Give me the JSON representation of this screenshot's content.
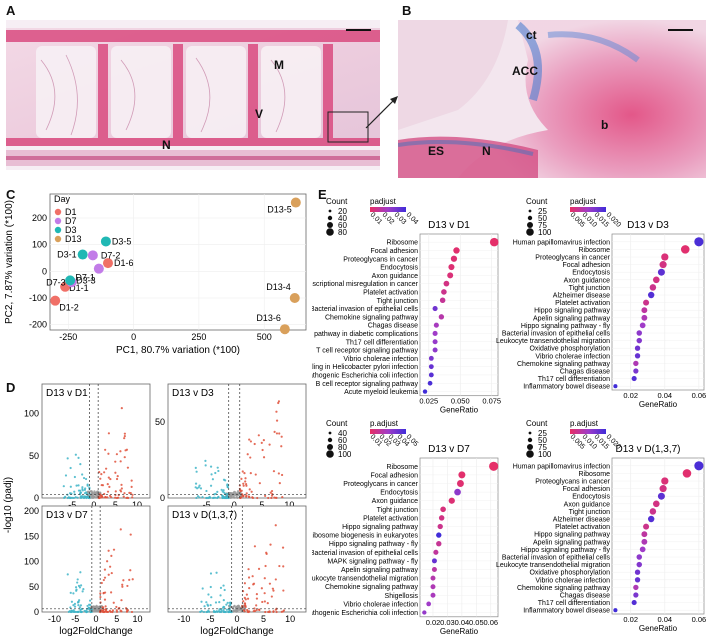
{
  "panels": {
    "a": {
      "letter": "A",
      "labels": {
        "m": "M",
        "v": "V",
        "n": "N"
      }
    },
    "b": {
      "letter": "B",
      "labels": {
        "ct": "ct",
        "acc": "ACC",
        "b": "b",
        "es": "ES",
        "n": "N"
      }
    },
    "c": {
      "letter": "C"
    },
    "d": {
      "letter": "D"
    },
    "e": {
      "letter": "E"
    }
  },
  "colors": {
    "D1": "#f07067",
    "D7": "#c27ce8",
    "D3": "#20b8b4",
    "D13": "#d9a05b",
    "volcano_up": "#e0523c",
    "volcano_down": "#3fb5c8",
    "volcano_ns": "#9a9a9a"
  },
  "chart_data": [
    {
      "type": "scatter",
      "id": "pca",
      "xlabel": "PC1, 80.7% variation (*100)",
      "ylabel": "PC2, 7.87% variation (*100)",
      "xlim": [
        -320,
        660
      ],
      "ylim": [
        -220,
        290
      ],
      "xticks": [
        -250,
        0,
        250,
        500
      ],
      "yticks": [
        -200,
        -100,
        0,
        100,
        200
      ],
      "legend": {
        "title": "Day",
        "entries": [
          "D1",
          "D7",
          "D3",
          "D13"
        ]
      },
      "points": [
        {
          "label": "D1-1",
          "group": "D1",
          "x": -262,
          "y": -58
        },
        {
          "label": "D1-2",
          "group": "D1",
          "x": -300,
          "y": -110
        },
        {
          "label": "D1-6",
          "group": "D1",
          "x": -98,
          "y": 31
        },
        {
          "label": "D7-1",
          "group": "D7",
          "x": -133,
          "y": 10
        },
        {
          "label": "D7-2",
          "group": "D7",
          "x": -156,
          "y": 60
        },
        {
          "label": "D7-3",
          "group": "D7",
          "x": -237,
          "y": -41
        },
        {
          "label": "D3-1",
          "group": "D3",
          "x": -195,
          "y": 63
        },
        {
          "label": "D3-3",
          "group": "D3",
          "x": -243,
          "y": -34
        },
        {
          "label": "D3-5",
          "group": "D3",
          "x": -106,
          "y": 112
        },
        {
          "label": "D13-4",
          "group": "D13",
          "x": 617,
          "y": -100
        },
        {
          "label": "D13-5",
          "group": "D13",
          "x": 621,
          "y": 258
        },
        {
          "label": "D13-6",
          "group": "D13",
          "x": 579,
          "y": -217
        }
      ]
    },
    {
      "type": "scatter",
      "id": "volcano",
      "xlabel": "log2FoldChange",
      "ylabel": "-log10 (padj)",
      "panels": [
        {
          "title": "D13 v D1",
          "xticks": [
            -5,
            0,
            5,
            10
          ],
          "yticks": [
            0,
            50,
            100
          ],
          "ylim": [
            0,
            135
          ]
        },
        {
          "title": "D13 v D3",
          "xticks": [
            -5,
            0,
            5,
            10
          ],
          "yticks": [
            0,
            50
          ],
          "ylim": [
            0,
            75
          ]
        },
        {
          "title": "D13 v D7",
          "xticks": [
            -10,
            -5,
            0,
            5,
            10
          ],
          "yticks": [
            0,
            50,
            100,
            150,
            200
          ],
          "ylim": [
            0,
            210
          ]
        },
        {
          "title": "D13 v D(1,3,7)",
          "xticks": [
            -10,
            -5,
            0,
            5,
            10
          ],
          "yticks": [],
          "ylim": [
            0,
            210
          ]
        }
      ]
    },
    {
      "type": "scatter",
      "id": "go",
      "xlabel": "GeneRatio",
      "panels": [
        {
          "title": "D13 v D1",
          "size_title": "Count",
          "color_title": "padjust",
          "size_levels": [
            "20",
            "40",
            "60",
            "80"
          ],
          "color_ticks": [
            "0.01",
            "0.02",
            "0.03",
            "0.04"
          ],
          "xlim": [
            0.018,
            0.08
          ],
          "xticks": [
            0.025,
            0.05,
            0.075
          ],
          "xticklabels": [
            "0.025",
            "0.050",
            "0.075"
          ],
          "terms": [
            "Ribosome",
            "Focal adhesion",
            "Proteoglycans in cancer",
            "Endocytosis",
            "Axon guidance",
            "Transcriptional misregulation in cancer",
            "Platelet activation",
            "Tight junction",
            "Bacterial invasion of epithelial cells",
            "Chemokine signaling pathway",
            "Chagas disease",
            "AGE-RAGE signaling pathway in diabetic complications",
            "Th17 cell differentiation",
            "T cell receptor signaling pathway",
            "Vibrio cholerae infection",
            "Epithelial cell signaling in Helicobacter pylori infection",
            "Pathogenic Escherichia coli infection",
            "B cell receptor signaling pathway",
            "Acute myeloid leukemia"
          ],
          "ratio": [
            0.077,
            0.047,
            0.045,
            0.043,
            0.042,
            0.039,
            0.037,
            0.036,
            0.03,
            0.035,
            0.031,
            0.03,
            0.03,
            0.03,
            0.027,
            0.027,
            0.027,
            0.026,
            0.022
          ],
          "count": [
            90,
            56,
            54,
            52,
            50,
            46,
            44,
            42,
            36,
            40,
            36,
            35,
            35,
            34,
            32,
            32,
            32,
            30,
            26
          ],
          "padj": [
            0.001,
            0.002,
            0.003,
            0.003,
            0.004,
            0.006,
            0.008,
            0.01,
            0.03,
            0.014,
            0.018,
            0.02,
            0.022,
            0.024,
            0.028,
            0.032,
            0.035,
            0.038,
            0.04
          ]
        },
        {
          "title": "D13 v D3",
          "size_title": "Count",
          "color_title": "padjust",
          "size_levels": [
            "25",
            "50",
            "75",
            "100"
          ],
          "color_ticks": [
            "0.005",
            "0.010",
            "0.015",
            "0.020"
          ],
          "xlim": [
            0.009,
            0.063
          ],
          "xticks": [
            0.02,
            0.04,
            0.06
          ],
          "xticklabels": [
            "0.02",
            "0.04",
            "0.06"
          ],
          "terms": [
            "Human papillomavirus infection",
            "Ribosome",
            "Proteoglycans in cancer",
            "Focal adhesion",
            "Endocytosis",
            "Axon guidance",
            "Tight junction",
            "Alzheimer disease",
            "Platelet activation",
            "Hippo signaling pathway",
            "Apelin signaling pathway",
            "Hippo signaling pathway - fly",
            "Bacterial invasion of epithelial cells",
            "Leukocyte transendothelial migration",
            "Oxidative phosphorylation",
            "Vibrio cholerae infection",
            "Chemokine signaling pathway",
            "Chagas disease",
            "Th17 cell differentiation",
            "Inflammatory bowel disease"
          ],
          "ratio": [
            0.06,
            0.052,
            0.04,
            0.039,
            0.038,
            0.035,
            0.033,
            0.032,
            0.029,
            0.028,
            0.028,
            0.027,
            0.025,
            0.025,
            0.024,
            0.024,
            0.023,
            0.023,
            0.022,
            0.011
          ],
          "count": [
            100,
            90,
            70,
            68,
            66,
            60,
            58,
            56,
            50,
            48,
            48,
            46,
            42,
            42,
            40,
            40,
            40,
            38,
            36,
            20
          ],
          "padj": [
            0.019,
            0.001,
            0.002,
            0.003,
            0.017,
            0.003,
            0.004,
            0.018,
            0.004,
            0.006,
            0.008,
            0.01,
            0.012,
            0.013,
            0.015,
            0.016,
            0.008,
            0.014,
            0.018,
            0.02
          ]
        },
        {
          "title": "D13 v D7",
          "size_title": "Count",
          "color_title": "p.adjust",
          "size_levels": [
            "40",
            "60",
            "80",
            "100"
          ],
          "color_ticks": [
            "0.01",
            "0.02",
            "0.03",
            "0.04",
            "0.05"
          ],
          "xlim": [
            0.011,
            0.065
          ],
          "xticks": [
            0.02,
            0.03,
            0.04,
            0.05,
            0.06
          ],
          "xticklabels": [
            "0.02",
            "0.03",
            "0.04",
            "0.05",
            "0.06"
          ],
          "terms": [
            "Ribosome",
            "Focal adhesion",
            "Proteoglycans in cancer",
            "Endocytosis",
            "Axon guidance",
            "Tight junction",
            "Platelet activation",
            "Hippo signaling pathway",
            "Ribosome biogenesis in eukaryotes",
            "Hippo signaling pathway - fly",
            "Bacterial invasion of epithelial cells",
            "MAPK signaling pathway - fly",
            "Apelin signaling pathway",
            "Leukocyte transendothelial migration",
            "Chemokine signaling pathway",
            "Shigellosis",
            "Vibrio cholerae infection",
            "Pathogenic Escherichia coli infection"
          ],
          "ratio": [
            0.062,
            0.04,
            0.039,
            0.037,
            0.033,
            0.027,
            0.026,
            0.025,
            0.024,
            0.024,
            0.022,
            0.021,
            0.021,
            0.02,
            0.02,
            0.02,
            0.017,
            0.014
          ],
          "count": [
            100,
            66,
            64,
            60,
            54,
            44,
            42,
            40,
            40,
            40,
            36,
            34,
            34,
            34,
            34,
            34,
            30,
            24
          ],
          "padj": [
            0.001,
            0.002,
            0.003,
            0.03,
            0.004,
            0.006,
            0.008,
            0.01,
            0.05,
            0.012,
            0.014,
            0.04,
            0.016,
            0.018,
            0.02,
            0.022,
            0.025,
            0.028
          ]
        },
        {
          "title": "D13 v D(1,3,7)",
          "size_title": "Count",
          "color_title": "p.adjust",
          "size_levels": [
            "25",
            "50",
            "75",
            "100"
          ],
          "color_ticks": [
            "0.005",
            "0.010",
            "0.015",
            "0.020"
          ],
          "xlim": [
            0.009,
            0.063
          ],
          "xticks": [
            0.02,
            0.04,
            0.06
          ],
          "xticklabels": [
            "0.02",
            "0.04",
            "0.06"
          ],
          "terms": [
            "Human papillomavirus infection",
            "Ribosome",
            "Proteoglycans in cancer",
            "Focal adhesion",
            "Endocytosis",
            "Axon guidance",
            "Tight junction",
            "Alzheimer disease",
            "Platelet activation",
            "Hippo signaling pathway",
            "Apelin signaling pathway",
            "Hippo signaling pathway - fly",
            "Bacterial invasion of epithelial cells",
            "Leukocyte transendothelial migration",
            "Oxidative phosphorylation",
            "Vibrio cholerae infection",
            "Chemokine signaling pathway",
            "Chagas disease",
            "Th17 cell differentiation",
            "Inflammatory bowel disease"
          ],
          "ratio": [
            0.06,
            0.053,
            0.04,
            0.039,
            0.038,
            0.035,
            0.033,
            0.032,
            0.029,
            0.028,
            0.028,
            0.027,
            0.025,
            0.025,
            0.024,
            0.024,
            0.023,
            0.023,
            0.022,
            0.011
          ],
          "count": [
            100,
            90,
            70,
            68,
            66,
            60,
            58,
            56,
            50,
            48,
            48,
            46,
            42,
            42,
            40,
            40,
            40,
            38,
            36,
            20
          ],
          "padj": [
            0.019,
            0.001,
            0.002,
            0.003,
            0.017,
            0.003,
            0.004,
            0.018,
            0.004,
            0.006,
            0.008,
            0.01,
            0.012,
            0.013,
            0.015,
            0.016,
            0.008,
            0.014,
            0.018,
            0.02
          ]
        }
      ]
    }
  ]
}
